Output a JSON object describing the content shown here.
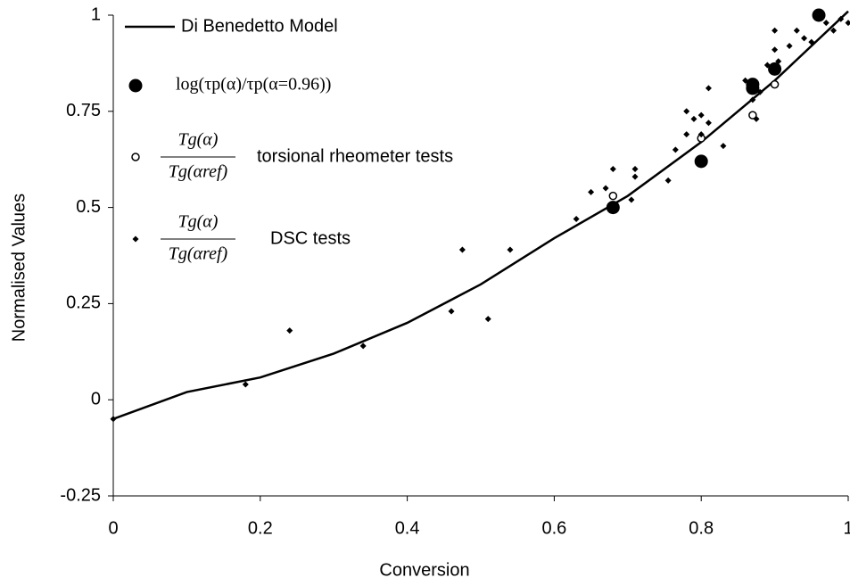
{
  "chart_data": {
    "type": "scatter",
    "xlabel": "Conversion",
    "ylabel": "Normalised Values",
    "xlim": [
      0,
      1
    ],
    "ylim": [
      -0.25,
      1
    ],
    "xticks": [
      0,
      0.2,
      0.4,
      0.6,
      0.8,
      1
    ],
    "yticks": [
      -0.25,
      0,
      0.25,
      0.5,
      0.75,
      1
    ],
    "grid": false,
    "legend": "upper left",
    "series": [
      {
        "name": "Di Benedetto Model",
        "style": "line",
        "color": "#000000",
        "x": [
          0,
          0.1,
          0.2,
          0.3,
          0.4,
          0.5,
          0.6,
          0.7,
          0.8,
          0.9,
          1
        ],
        "values": [
          -0.05,
          0.02,
          0.058,
          0.12,
          0.2,
          0.3,
          0.42,
          0.53,
          0.67,
          0.83,
          1.01
        ]
      },
      {
        "name": "log(τp(α)/τp(α=0.96))",
        "style": "filled-circle",
        "color": "#000000",
        "x": [
          0.68,
          0.8,
          0.87,
          0.87,
          0.9,
          0.96
        ],
        "values": [
          0.5,
          0.62,
          0.81,
          0.82,
          0.86,
          1.0
        ]
      },
      {
        "name": "torsional rheometer tests",
        "formula": [
          "Tg(α)",
          "Tg(αref)"
        ],
        "style": "open-circle",
        "color": "#000000",
        "x": [
          0.68,
          0.8,
          0.87,
          0.9
        ],
        "values": [
          0.53,
          0.68,
          0.74,
          0.82
        ]
      },
      {
        "name": "DSC tests",
        "formula": [
          "Tg(α)",
          "Tg(αref)"
        ],
        "style": "diamond",
        "color": "#000000",
        "x": [
          0,
          0.18,
          0.24,
          0.34,
          0.46,
          0.475,
          0.51,
          0.54,
          0.63,
          0.65,
          0.67,
          0.68,
          0.705,
          0.71,
          0.71,
          0.755,
          0.765,
          0.78,
          0.78,
          0.79,
          0.8,
          0.8,
          0.81,
          0.81,
          0.83,
          0.86,
          0.87,
          0.875,
          0.88,
          0.89,
          0.9,
          0.9,
          0.905,
          0.92,
          0.93,
          0.94,
          0.95,
          0.97,
          0.98,
          0.99,
          1.0
        ],
        "values": [
          -0.05,
          0.04,
          0.18,
          0.14,
          0.23,
          0.39,
          0.21,
          0.39,
          0.47,
          0.54,
          0.55,
          0.6,
          0.52,
          0.6,
          0.58,
          0.57,
          0.65,
          0.69,
          0.75,
          0.73,
          0.74,
          0.69,
          0.81,
          0.72,
          0.66,
          0.83,
          0.78,
          0.73,
          0.8,
          0.87,
          0.91,
          0.96,
          0.88,
          0.92,
          0.96,
          0.94,
          0.93,
          0.98,
          0.96,
          0.99,
          0.98
        ]
      }
    ]
  }
}
